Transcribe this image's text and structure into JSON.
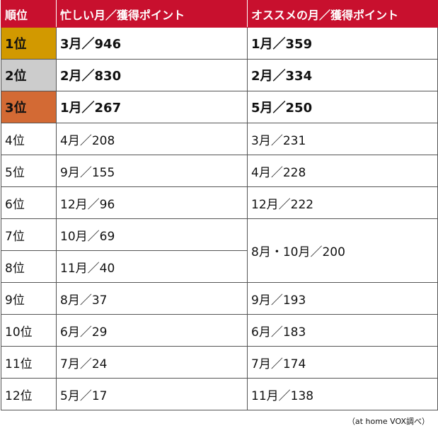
{
  "colors": {
    "header_bg": "#c8102e",
    "header_text": "#ffffff",
    "gold": "#d29900",
    "silver": "#cccccc",
    "bronze": "#d36a34",
    "border": "#555555"
  },
  "table": {
    "headers": [
      "順位",
      "忙しい月／獲得ポイント",
      "オススメの月／獲得ポイント"
    ],
    "rows": [
      {
        "rank": "1位",
        "busy": "3月／946",
        "recommended": "1月／359"
      },
      {
        "rank": "2位",
        "busy": "2月／830",
        "recommended": "2月／334"
      },
      {
        "rank": "3位",
        "busy": "1月／267",
        "recommended": "5月／250"
      },
      {
        "rank": "4位",
        "busy": "4月／208",
        "recommended": "3月／231"
      },
      {
        "rank": "5位",
        "busy": "9月／155",
        "recommended": "4月／228"
      },
      {
        "rank": "6位",
        "busy": "12月／96",
        "recommended": "12月／222"
      },
      {
        "rank": "7位",
        "busy": "10月／69",
        "recommended": "8月・10月／200"
      },
      {
        "rank": "8位",
        "busy": "11月／40",
        "recommended": ""
      },
      {
        "rank": "9位",
        "busy": "8月／37",
        "recommended": "9月／193"
      },
      {
        "rank": "10位",
        "busy": "6月／29",
        "recommended": "6月／183"
      },
      {
        "rank": "11位",
        "busy": "7月／24",
        "recommended": "7月／174"
      },
      {
        "rank": "12位",
        "busy": "5月／17",
        "recommended": "11月／138"
      }
    ]
  },
  "source": "（at home VOX調べ）"
}
